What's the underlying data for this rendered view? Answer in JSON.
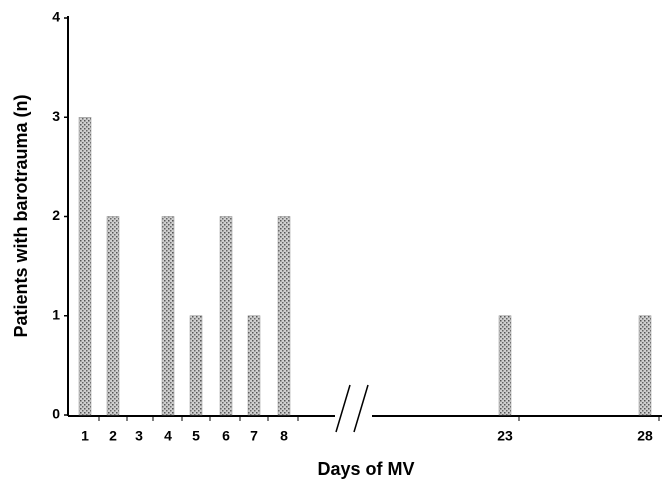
{
  "chart_data": {
    "type": "bar",
    "x_label": "Days  of MV",
    "y_label": "Patients with barotrauma (n)",
    "categories": [
      "1",
      "2",
      "3",
      "4",
      "5",
      "6",
      "7",
      "8",
      "23",
      "28"
    ],
    "values": [
      3,
      2,
      0,
      2,
      1,
      2,
      1,
      2,
      1,
      1
    ],
    "color": "#8a8a8a",
    "ylim": [
      0,
      4
    ],
    "yticks": [
      0,
      1,
      2,
      3,
      4
    ]
  }
}
